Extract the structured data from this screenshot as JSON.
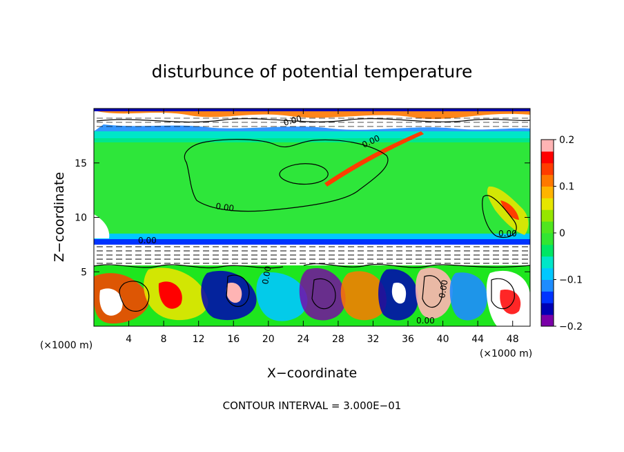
{
  "chart_data": {
    "type": "heatmap",
    "title": "disturbunce of potential temperature",
    "xlabel": "X−coordinate",
    "ylabel": "Z−coordinate",
    "x_unit": "(×1000 m)",
    "x_unit_right": "(×1000 m)",
    "xlim": [
      0,
      50
    ],
    "ylim": [
      0,
      20
    ],
    "x_ticks": [
      4,
      8,
      12,
      16,
      20,
      24,
      28,
      32,
      36,
      40,
      44,
      48
    ],
    "y_ticks": [
      5,
      10,
      15
    ],
    "colorbar": {
      "range": [
        -0.2,
        0.2
      ],
      "ticks": [
        "0.2",
        "0.1",
        "0",
        "−0.1",
        "−0.2"
      ],
      "tick_values": [
        0.2,
        0.1,
        0,
        -0.1,
        -0.2
      ],
      "colors": [
        "#7a00a8",
        "#0000b4",
        "#0034ff",
        "#1e8cff",
        "#00c8ff",
        "#00e6c8",
        "#00e664",
        "#32e632",
        "#50e61e",
        "#96e600",
        "#e6e600",
        "#ffb400",
        "#ff7800",
        "#ff3c00",
        "#ff0000",
        "#ffb4b4"
      ]
    },
    "contour_labels": [
      "0.00",
      "0.00",
      "0.00",
      "0.00",
      "0.00",
      "0.00",
      "0.00",
      "0.00"
    ],
    "contour_interval_text": "CONTOUR INTERVAL = 3.000E−01"
  }
}
